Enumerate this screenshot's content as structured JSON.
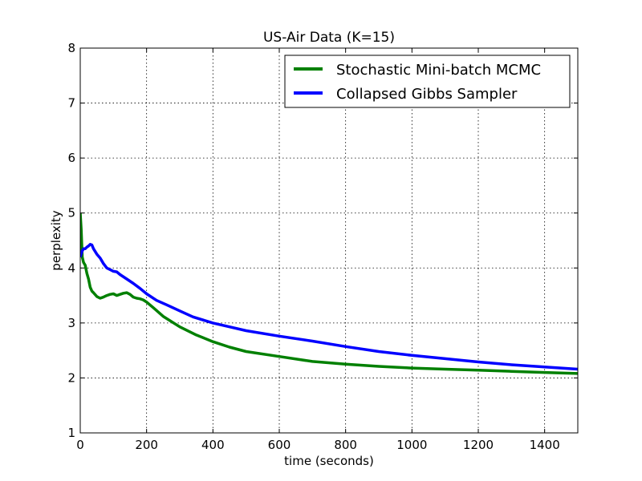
{
  "chart_data": {
    "type": "line",
    "title": "US-Air Data (K=15)",
    "xlabel": "time (seconds)",
    "ylabel": "perplexity",
    "xlim": [
      0,
      1500
    ],
    "ylim": [
      1,
      8
    ],
    "xticks": [
      0,
      200,
      400,
      600,
      800,
      1000,
      1200,
      1400
    ],
    "yticks": [
      1,
      2,
      3,
      4,
      5,
      6,
      7,
      8
    ],
    "grid": true,
    "legend_position": "top-right",
    "series": [
      {
        "name": "Stochastic Mini-batch MCMC",
        "color": "#008000",
        "x": [
          0,
          3,
          6,
          10,
          15,
          20,
          25,
          30,
          35,
          40,
          50,
          60,
          70,
          80,
          90,
          100,
          110,
          120,
          130,
          140,
          150,
          160,
          170,
          180,
          190,
          200,
          220,
          250,
          300,
          350,
          400,
          450,
          500,
          600,
          700,
          800,
          900,
          1000,
          1100,
          1200,
          1300,
          1400,
          1500
        ],
        "y": [
          5.0,
          4.7,
          4.2,
          4.1,
          4.05,
          3.9,
          3.8,
          3.65,
          3.58,
          3.55,
          3.48,
          3.45,
          3.47,
          3.5,
          3.52,
          3.53,
          3.5,
          3.52,
          3.54,
          3.55,
          3.52,
          3.47,
          3.45,
          3.44,
          3.42,
          3.38,
          3.28,
          3.12,
          2.93,
          2.78,
          2.66,
          2.56,
          2.48,
          2.39,
          2.3,
          2.25,
          2.21,
          2.18,
          2.16,
          2.14,
          2.12,
          2.1,
          2.08
        ]
      },
      {
        "name": "Collapsed Gibbs Sampler",
        "color": "#0000ff",
        "x": [
          0,
          5,
          10,
          15,
          20,
          25,
          30,
          35,
          40,
          50,
          60,
          70,
          80,
          90,
          100,
          110,
          120,
          140,
          160,
          180,
          200,
          230,
          260,
          300,
          340,
          400,
          450,
          500,
          600,
          700,
          800,
          900,
          1000,
          1100,
          1200,
          1300,
          1400,
          1500
        ],
        "y": [
          4.2,
          4.3,
          4.35,
          4.35,
          4.38,
          4.4,
          4.43,
          4.42,
          4.35,
          4.25,
          4.18,
          4.08,
          4.0,
          3.97,
          3.94,
          3.93,
          3.88,
          3.8,
          3.72,
          3.63,
          3.53,
          3.41,
          3.33,
          3.22,
          3.11,
          3.0,
          2.93,
          2.86,
          2.76,
          2.67,
          2.57,
          2.48,
          2.41,
          2.35,
          2.29,
          2.24,
          2.2,
          2.16
        ]
      }
    ]
  }
}
